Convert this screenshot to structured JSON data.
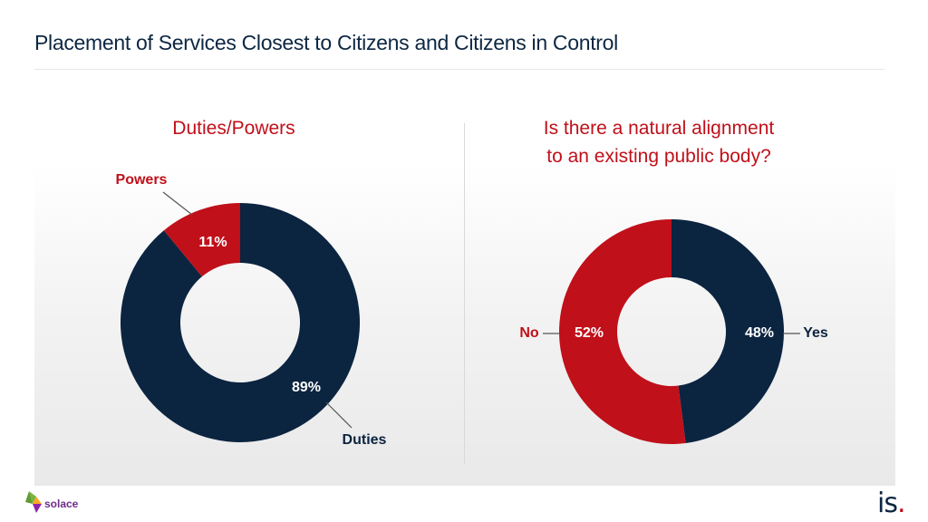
{
  "page": {
    "title": "Placement of Services Closest to Citizens and Citizens in Control"
  },
  "colors": {
    "navy": "#0b2440",
    "red": "#c0101a",
    "grey_text": "#555555"
  },
  "chart_data": [
    {
      "type": "pie",
      "subtype": "donut",
      "title": "Duties/Powers",
      "categories": [
        "Duties",
        "Powers"
      ],
      "values": [
        89,
        11
      ],
      "value_labels": [
        "89%",
        "11%"
      ],
      "colors": [
        "#0b2440",
        "#c0101a"
      ]
    },
    {
      "type": "pie",
      "subtype": "donut",
      "title": "Is there a natural alignment to an existing public body?",
      "title_lines": [
        "Is there a natural alignment",
        "to an existing public body?"
      ],
      "categories": [
        "Yes",
        "No"
      ],
      "values": [
        48,
        52
      ],
      "value_labels": [
        "48%",
        "52%"
      ],
      "colors": [
        "#0b2440",
        "#c0101a"
      ]
    }
  ],
  "logos": {
    "left": "solace",
    "right_main": "is",
    "right_dot": "."
  }
}
